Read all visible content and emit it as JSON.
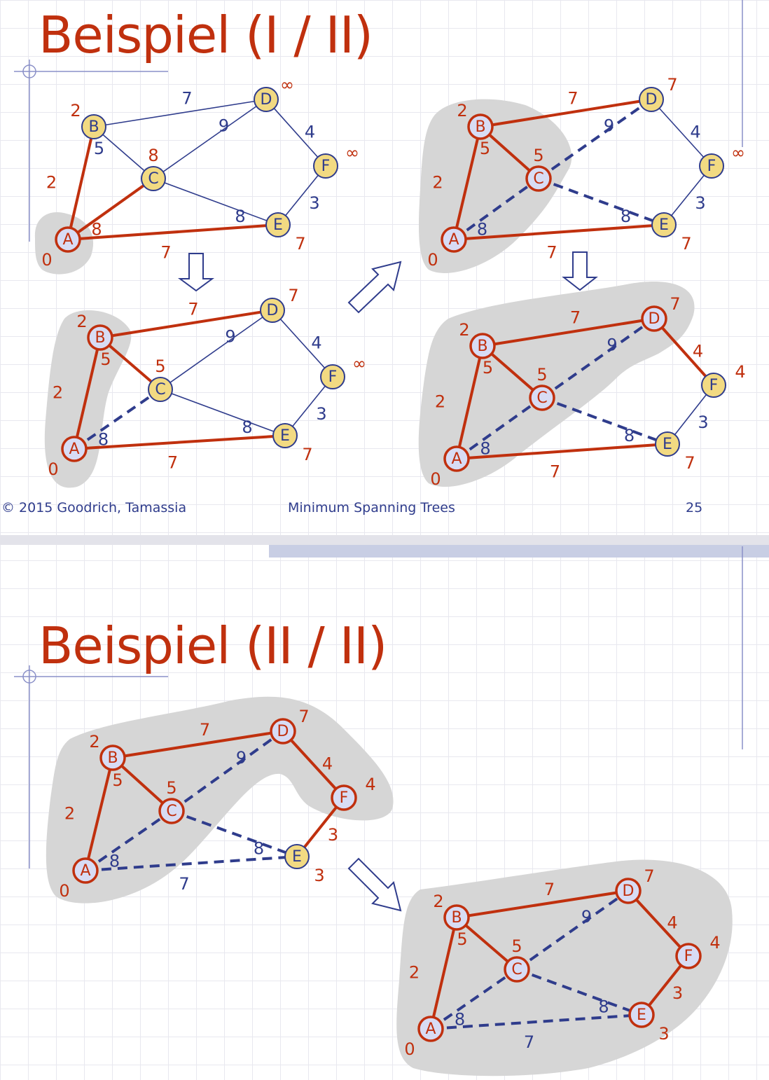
{
  "slide1": {
    "title": "Beispiel (I / II)",
    "footer": {
      "copyright": "© 2015 Goodrich, Tamassia",
      "center": "Minimum Spanning Trees",
      "page": "25"
    }
  },
  "slide2": {
    "title": "Beispiel (II / II)"
  },
  "colors": {
    "title": "#c0300e",
    "tree_edge": "#c0300e",
    "graph_edge": "#2f3c8c",
    "node_unvisited_fill": "#f2da82",
    "node_visited_fill": "#d8dcf4",
    "cloud": "#d6d6d6",
    "footer_text": "#2f3c8c"
  },
  "graph": {
    "edges": [
      {
        "id": "AB",
        "from": "A",
        "to": "B",
        "weight": "2"
      },
      {
        "id": "BC",
        "from": "B",
        "to": "C",
        "weight": "5"
      },
      {
        "id": "AC",
        "from": "A",
        "to": "C",
        "weight": "8"
      },
      {
        "id": "BD",
        "from": "B",
        "to": "D",
        "weight": "7"
      },
      {
        "id": "CD",
        "from": "C",
        "to": "D",
        "weight": "9"
      },
      {
        "id": "CE",
        "from": "C",
        "to": "E",
        "weight": "8"
      },
      {
        "id": "AE",
        "from": "A",
        "to": "E",
        "weight": "7"
      },
      {
        "id": "DF",
        "from": "D",
        "to": "F",
        "weight": "4"
      },
      {
        "id": "EF",
        "from": "E",
        "to": "F",
        "weight": "3"
      }
    ]
  },
  "steps": [
    {
      "id": "step1",
      "cloud": [
        "A"
      ],
      "distances": {
        "A": "0",
        "B": "2",
        "C": "8",
        "D": "∞",
        "E": "7",
        "F": "∞"
      },
      "tree_edges": [
        "AB",
        "AC",
        "AE"
      ],
      "dashed_edges": []
    },
    {
      "id": "step2",
      "cloud": [
        "A",
        "B"
      ],
      "distances": {
        "A": "0",
        "B": "2",
        "C": "5",
        "D": "7",
        "E": "7",
        "F": "∞"
      },
      "tree_edges": [
        "AB",
        "BC",
        "BD",
        "AE"
      ],
      "dashed_edges": [
        "AC"
      ]
    },
    {
      "id": "step3",
      "cloud": [
        "A",
        "B",
        "C"
      ],
      "distances": {
        "A": "0",
        "B": "2",
        "C": "5",
        "D": "7",
        "E": "7",
        "F": "∞"
      },
      "tree_edges": [
        "AB",
        "BC",
        "BD",
        "AE"
      ],
      "dashed_edges": [
        "AC",
        "CD",
        "CE"
      ]
    },
    {
      "id": "step4",
      "cloud": [
        "A",
        "B",
        "C",
        "D"
      ],
      "distances": {
        "A": "0",
        "B": "2",
        "C": "5",
        "D": "7",
        "E": "7",
        "F": "4"
      },
      "tree_edges": [
        "AB",
        "BC",
        "BD",
        "AE",
        "DF"
      ],
      "dashed_edges": [
        "AC",
        "CD",
        "CE"
      ]
    },
    {
      "id": "step5",
      "cloud": [
        "A",
        "B",
        "C",
        "D",
        "F"
      ],
      "distances": {
        "A": "0",
        "B": "2",
        "C": "5",
        "D": "7",
        "E": "3",
        "F": "4"
      },
      "tree_edges": [
        "AB",
        "BC",
        "BD",
        "DF",
        "EF"
      ],
      "dashed_edges": [
        "AC",
        "CD",
        "CE",
        "AE"
      ]
    },
    {
      "id": "step6",
      "cloud": [
        "A",
        "B",
        "C",
        "D",
        "E",
        "F"
      ],
      "distances": {
        "A": "0",
        "B": "2",
        "C": "5",
        "D": "7",
        "E": "3",
        "F": "4"
      },
      "tree_edges": [
        "AB",
        "BC",
        "BD",
        "DF",
        "EF"
      ],
      "dashed_edges": [
        "AC",
        "CD",
        "CE",
        "AE"
      ]
    }
  ]
}
